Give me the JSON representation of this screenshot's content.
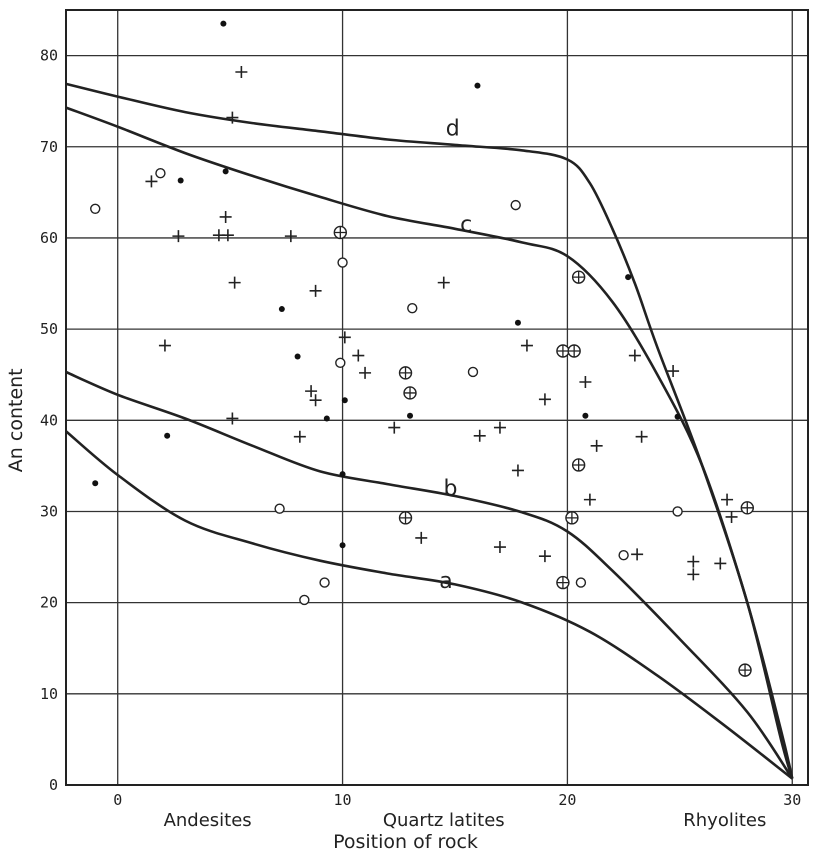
{
  "chart_data": {
    "type": "scatter",
    "title": "",
    "xlabel": "Position of rock",
    "ylabel": "An content",
    "xlim": [
      -2.3,
      30.7
    ],
    "ylim": [
      0,
      85
    ],
    "grid": true,
    "x_ticks": [
      "0",
      "10",
      "20",
      "30"
    ],
    "y_ticks": [
      "0",
      "10",
      "20",
      "30",
      "40",
      "50",
      "60",
      "70",
      "80"
    ],
    "x_category_labels": [
      {
        "text": "Andesites",
        "x": 4
      },
      {
        "text": "Quartz latites",
        "x": 14.5
      },
      {
        "text": "Rhyolites",
        "x": 27
      }
    ],
    "curves": [
      {
        "label": "a",
        "label_at": [
          14.6,
          22.4
        ],
        "points": [
          [
            -2.3,
            38.8
          ],
          [
            0,
            34
          ],
          [
            3,
            29
          ],
          [
            6,
            26.5
          ],
          [
            9,
            24.6
          ],
          [
            12,
            23.2
          ],
          [
            15,
            22
          ],
          [
            18,
            20
          ],
          [
            21,
            16.8
          ],
          [
            24,
            12
          ],
          [
            27,
            6.5
          ],
          [
            30,
            0.7
          ]
        ]
      },
      {
        "label": "b",
        "label_at": [
          14.8,
          32.5
        ],
        "points": [
          [
            -2.3,
            45.3
          ],
          [
            0,
            42.8
          ],
          [
            3,
            40.2
          ],
          [
            6,
            37.2
          ],
          [
            9,
            34.4
          ],
          [
            12,
            33
          ],
          [
            15,
            31.7
          ],
          [
            18,
            29.9
          ],
          [
            20,
            27.8
          ],
          [
            22,
            23.5
          ],
          [
            25,
            16
          ],
          [
            28,
            8
          ],
          [
            30,
            0.7
          ]
        ]
      },
      {
        "label": "c",
        "label_at": [
          15.5,
          61.5
        ],
        "points": [
          [
            -2.3,
            74.3
          ],
          [
            0,
            72.2
          ],
          [
            3,
            69.3
          ],
          [
            6,
            66.8
          ],
          [
            9,
            64.5
          ],
          [
            12,
            62.4
          ],
          [
            15,
            61
          ],
          [
            18,
            59.5
          ],
          [
            20,
            58
          ],
          [
            22,
            53
          ],
          [
            24,
            45
          ],
          [
            26,
            35
          ],
          [
            28,
            20
          ],
          [
            29.5,
            6
          ],
          [
            30,
            0.7
          ]
        ]
      },
      {
        "label": "d",
        "label_at": [
          14.9,
          72
        ],
        "points": [
          [
            -2.3,
            76.9
          ],
          [
            0,
            75.5
          ],
          [
            3,
            73.8
          ],
          [
            6,
            72.6
          ],
          [
            9,
            71.7
          ],
          [
            12,
            70.8
          ],
          [
            15,
            70.2
          ],
          [
            18,
            69.6
          ],
          [
            20,
            68.6
          ],
          [
            21,
            66
          ],
          [
            22,
            61
          ],
          [
            23,
            55
          ],
          [
            24,
            48
          ],
          [
            26,
            35
          ],
          [
            28,
            20
          ],
          [
            29.5,
            5
          ],
          [
            30,
            0.7
          ]
        ]
      }
    ],
    "series": [
      {
        "marker": "dot",
        "points": [
          [
            4.7,
            83.5
          ],
          [
            16,
            76.7
          ],
          [
            4.8,
            67.3
          ],
          [
            2.8,
            66.3
          ],
          [
            7.3,
            52.2
          ],
          [
            17.8,
            50.7
          ],
          [
            8,
            47
          ],
          [
            10.1,
            42.2
          ],
          [
            2.2,
            38.3
          ],
          [
            13,
            40.5
          ],
          [
            9.3,
            40.2
          ],
          [
            -1,
            33.1
          ],
          [
            10,
            34.1
          ],
          [
            20.8,
            40.5
          ],
          [
            22.7,
            55.7
          ],
          [
            24.9,
            40.4
          ],
          [
            10,
            26.3
          ]
        ]
      },
      {
        "marker": "circle",
        "points": [
          [
            -1,
            63.2
          ],
          [
            1.9,
            67.1
          ],
          [
            13.1,
            52.3
          ],
          [
            17.7,
            63.6
          ],
          [
            10,
            57.3
          ],
          [
            9.9,
            46.3
          ],
          [
            15.8,
            45.3
          ],
          [
            7.2,
            30.3
          ],
          [
            9.2,
            22.2
          ],
          [
            8.3,
            20.3
          ],
          [
            20.6,
            22.2
          ],
          [
            22.5,
            25.2
          ],
          [
            24.9,
            30
          ]
        ]
      },
      {
        "marker": "plus",
        "points": [
          [
            5.5,
            78.2
          ],
          [
            5.1,
            73.2
          ],
          [
            1.5,
            66.2
          ],
          [
            4.8,
            62.3
          ],
          [
            4.5,
            60.3
          ],
          [
            4.9,
            60.3
          ],
          [
            2.7,
            60.2
          ],
          [
            7.7,
            60.2
          ],
          [
            5.2,
            55.1
          ],
          [
            8.8,
            54.2
          ],
          [
            14.5,
            55.1
          ],
          [
            10.1,
            49.1
          ],
          [
            10.7,
            47.1
          ],
          [
            11,
            45.2
          ],
          [
            2.1,
            48.2
          ],
          [
            8.6,
            43.2
          ],
          [
            8.8,
            42.2
          ],
          [
            5.1,
            40.2
          ],
          [
            8.1,
            38.2
          ],
          [
            12.3,
            39.2
          ],
          [
            16.1,
            38.3
          ],
          [
            17,
            39.2
          ],
          [
            18.2,
            48.2
          ],
          [
            20.8,
            44.2
          ],
          [
            19,
            42.3
          ],
          [
            23,
            47.1
          ],
          [
            24.7,
            45.4
          ],
          [
            21.3,
            37.2
          ],
          [
            23.3,
            38.2
          ],
          [
            17.8,
            34.5
          ],
          [
            21,
            31.3
          ],
          [
            13.5,
            27.1
          ],
          [
            17,
            26.1
          ],
          [
            19,
            25.1
          ],
          [
            23.1,
            25.3
          ],
          [
            25.6,
            24.5
          ],
          [
            25.6,
            23.1
          ],
          [
            26.8,
            24.3
          ],
          [
            27.1,
            31.3
          ],
          [
            27.3,
            29.4
          ]
        ]
      },
      {
        "marker": "circle-plus",
        "points": [
          [
            9.9,
            60.6
          ],
          [
            12.8,
            45.2
          ],
          [
            13,
            43
          ],
          [
            19.8,
            47.6
          ],
          [
            20.3,
            47.6
          ],
          [
            20.5,
            55.7
          ],
          [
            20.5,
            35.1
          ],
          [
            20.2,
            29.3
          ],
          [
            19.8,
            22.2
          ],
          [
            12.8,
            29.3
          ],
          [
            28,
            30.4
          ],
          [
            27.9,
            12.6
          ]
        ]
      }
    ]
  }
}
